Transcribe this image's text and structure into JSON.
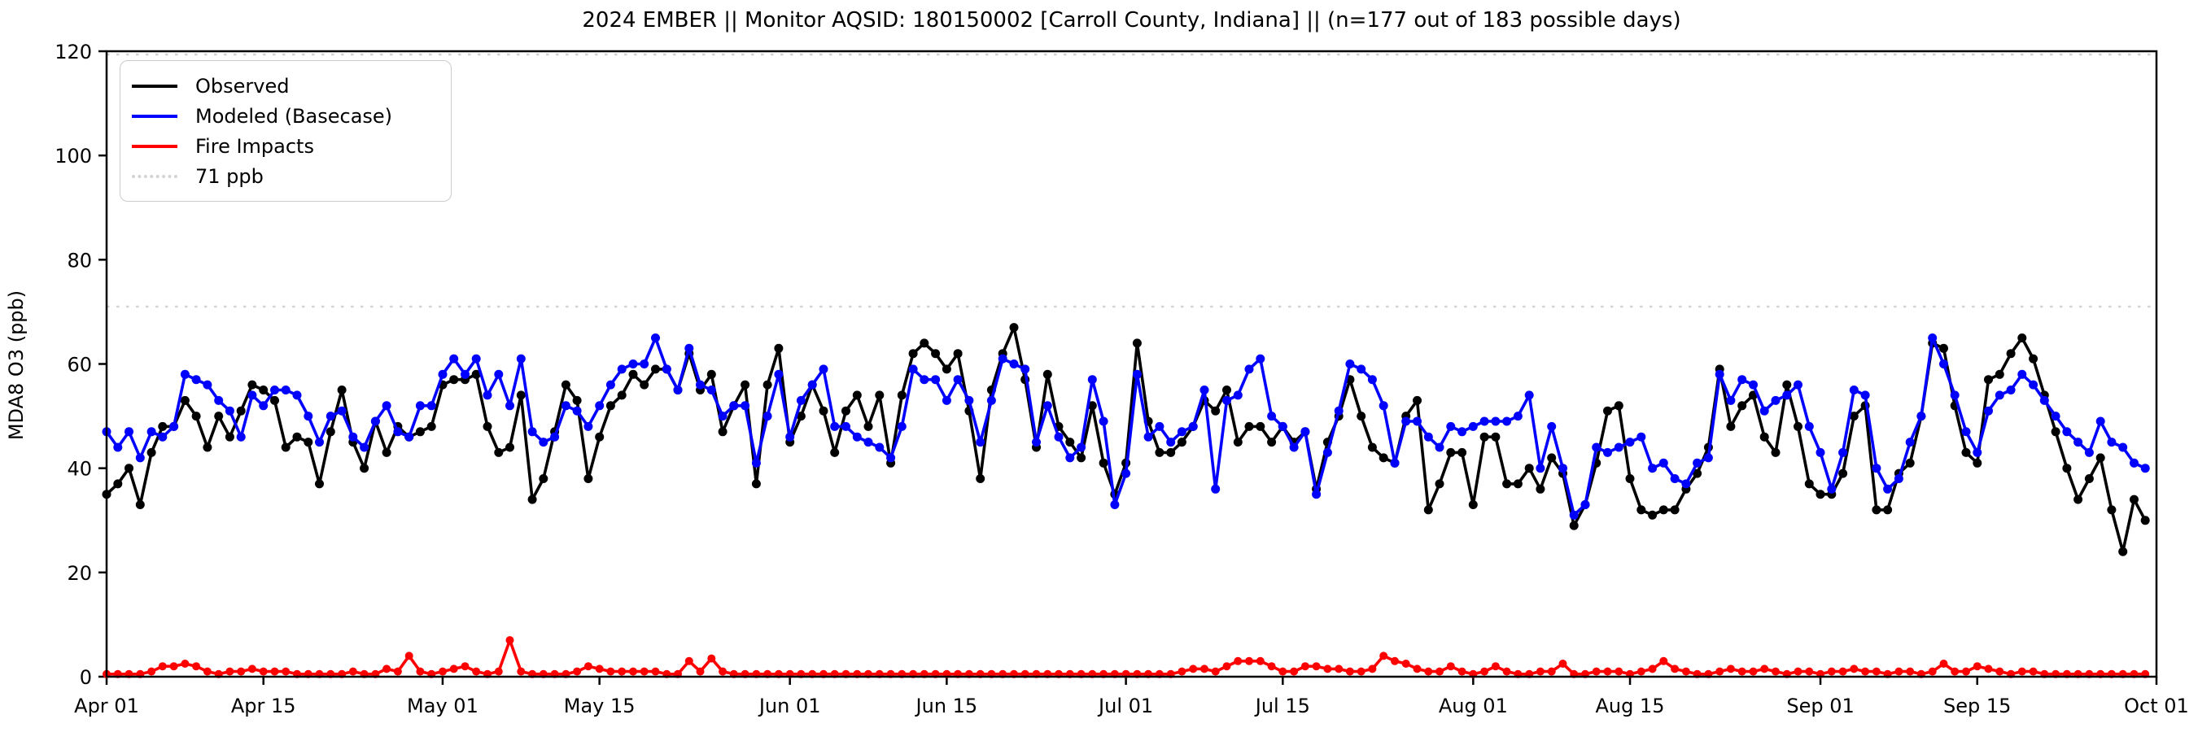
{
  "title": "2024 EMBER || Monitor AQSID: 180150002 [Carroll County, Indiana] || (n=177 out of 183 possible days)",
  "y_axis": {
    "label": "MDA8 O3 (ppb)",
    "ticks": [
      0,
      20,
      40,
      60,
      80,
      100,
      120
    ],
    "range": [
      0,
      120
    ]
  },
  "x_axis": {
    "tick_labels": [
      "Apr 01",
      "Apr 15",
      "May 01",
      "May 15",
      "Jun 01",
      "Jun 15",
      "Jul 01",
      "Jul 15",
      "Aug 01",
      "Aug 15",
      "Sep 01",
      "Sep 15",
      "Oct 01"
    ],
    "tick_days": [
      0,
      14,
      30,
      44,
      61,
      75,
      91,
      105,
      122,
      136,
      153,
      167,
      183
    ]
  },
  "legend": [
    {
      "label": "Observed",
      "color": "#000000",
      "style": "solid"
    },
    {
      "label": "Modeled (Basecase)",
      "color": "#0000ff",
      "style": "solid"
    },
    {
      "label": "Fire Impacts",
      "color": "#ff0000",
      "style": "solid"
    },
    {
      "label": "71 ppb",
      "color": "#d3d3d3",
      "style": "dotted"
    }
  ],
  "reference_line": {
    "label": "71 ppb",
    "value": 71,
    "color": "#d3d3d3"
  },
  "chart_data": {
    "type": "line",
    "title": "2024 EMBER || Monitor AQSID: 180150002 [Carroll County, Indiana] || (n=177 out of 183 possible days)",
    "xlabel": "",
    "ylabel": "MDA8 O3 (ppb)",
    "ylim": [
      0,
      120
    ],
    "x_start_date": "Apr 01",
    "x_end_date": "Sep 30",
    "n_days": 183,
    "reference_value_ppb": 71,
    "grid": false,
    "legend_position": "upper left",
    "series": [
      {
        "name": "Observed",
        "color": "#000000",
        "values": [
          35,
          37,
          40,
          33,
          43,
          48,
          48,
          53,
          50,
          44,
          50,
          46,
          51,
          56,
          55,
          53,
          44,
          46,
          45,
          37,
          47,
          55,
          45,
          40,
          49,
          43,
          48,
          46,
          47,
          48,
          56,
          57,
          57,
          58,
          48,
          43,
          44,
          54,
          34,
          38,
          47,
          56,
          53,
          38,
          46,
          52,
          54,
          58,
          56,
          59,
          59,
          55,
          62,
          55,
          58,
          47,
          52,
          56,
          37,
          56,
          63,
          45,
          50,
          56,
          51,
          43,
          51,
          54,
          48,
          54,
          41,
          54,
          62,
          64,
          62,
          59,
          62,
          51,
          38,
          55,
          62,
          67,
          57,
          44,
          58,
          48,
          45,
          42,
          52,
          41,
          35,
          41,
          64,
          49,
          43,
          43,
          45,
          48,
          53,
          51,
          55,
          45,
          48,
          48,
          45,
          48,
          45,
          47,
          36,
          45,
          50,
          57,
          50,
          44,
          42,
          41,
          50,
          53,
          32,
          37,
          43,
          43,
          33,
          46,
          46,
          37,
          37,
          40,
          36,
          42,
          39,
          29,
          33,
          41,
          51,
          52,
          38,
          32,
          31,
          32,
          32,
          36,
          39,
          44,
          59,
          48,
          52,
          54,
          46,
          43,
          56,
          48,
          37,
          35,
          35,
          39,
          50,
          52,
          32,
          32,
          39,
          41,
          50,
          64,
          63,
          52,
          43,
          41,
          57,
          58,
          62,
          65,
          61,
          54,
          47,
          40,
          34,
          38,
          42,
          32,
          24,
          34,
          30
        ]
      },
      {
        "name": "Modeled (Basecase)",
        "color": "#0000ff",
        "values": [
          47,
          44,
          47,
          42,
          47,
          46,
          48,
          58,
          57,
          56,
          53,
          51,
          46,
          54,
          52,
          55,
          55,
          54,
          50,
          45,
          50,
          51,
          46,
          44,
          49,
          52,
          47,
          46,
          52,
          52,
          58,
          61,
          58,
          61,
          54,
          58,
          52,
          61,
          47,
          45,
          46,
          52,
          51,
          48,
          52,
          56,
          59,
          60,
          60,
          65,
          59,
          55,
          63,
          56,
          55,
          50,
          52,
          52,
          41,
          50,
          58,
          46,
          53,
          56,
          59,
          48,
          48,
          46,
          45,
          44,
          42,
          48,
          59,
          57,
          57,
          53,
          57,
          53,
          45,
          53,
          61,
          60,
          59,
          45,
          52,
          46,
          42,
          44,
          57,
          49,
          33,
          39,
          58,
          46,
          48,
          45,
          47,
          48,
          55,
          36,
          53,
          54,
          59,
          61,
          50,
          48,
          44,
          47,
          35,
          43,
          51,
          60,
          59,
          57,
          52,
          41,
          49,
          49,
          46,
          44,
          48,
          47,
          48,
          49,
          49,
          49,
          50,
          54,
          40,
          48,
          40,
          31,
          33,
          44,
          43,
          44,
          45,
          46,
          40,
          41,
          38,
          37,
          41,
          42,
          58,
          53,
          57,
          56,
          51,
          53,
          54,
          56,
          48,
          43,
          36,
          43,
          55,
          54,
          40,
          36,
          38,
          45,
          50,
          65,
          60,
          54,
          47,
          43,
          51,
          54,
          55,
          58,
          56,
          53,
          50,
          47,
          45,
          43,
          49,
          45,
          44,
          41,
          40
        ]
      },
      {
        "name": "Fire Impacts",
        "color": "#ff0000",
        "values": [
          0.5,
          0.5,
          0.5,
          0.5,
          1,
          2,
          2,
          2.5,
          2,
          1,
          0.5,
          1,
          1,
          1.5,
          1,
          1,
          1,
          0.5,
          0.5,
          0.5,
          0.5,
          0.5,
          1,
          0.5,
          0.5,
          1.5,
          1,
          4,
          1,
          0.5,
          1,
          1.5,
          2,
          1,
          0.5,
          1,
          7,
          1,
          0.5,
          0.5,
          0.5,
          0.5,
          1,
          2,
          1.5,
          1,
          1,
          1,
          1,
          1,
          0.5,
          0.5,
          3,
          1,
          3.5,
          1,
          0.5,
          0.5,
          0.5,
          0.5,
          0.5,
          0.5,
          0.5,
          0.5,
          0.5,
          0.5,
          0.5,
          0.5,
          0.5,
          0.5,
          0.5,
          0.5,
          0.5,
          0.5,
          0.5,
          0.5,
          0.5,
          0.5,
          0.5,
          0.5,
          0.5,
          0.5,
          0.5,
          0.5,
          0.5,
          0.5,
          0.5,
          0.5,
          0.5,
          0.5,
          0.5,
          0.5,
          0.5,
          0.5,
          0.5,
          0.5,
          1,
          1.5,
          1.5,
          1,
          2,
          3,
          3,
          3,
          2,
          1,
          1,
          2,
          2,
          1.5,
          1.5,
          1,
          1,
          1.5,
          4,
          3,
          2.5,
          1.5,
          1,
          1,
          2,
          1,
          0.5,
          1,
          2,
          1,
          0.5,
          0.5,
          1,
          1,
          2.5,
          0.5,
          0.5,
          1,
          1,
          1,
          0.5,
          1,
          1.5,
          3,
          1.5,
          1,
          0.5,
          0.5,
          1,
          1.5,
          1,
          1,
          1.5,
          1,
          0.5,
          1,
          1,
          0.5,
          1,
          1,
          1.5,
          1,
          1,
          0.5,
          1,
          1,
          0.5,
          1,
          2.5,
          1,
          1,
          2,
          1.5,
          1,
          0.5,
          1,
          1,
          0.5,
          0.5,
          0.5,
          0.5,
          0.5,
          0.5,
          0.5,
          0.5,
          0.5,
          0.5
        ]
      }
    ]
  }
}
